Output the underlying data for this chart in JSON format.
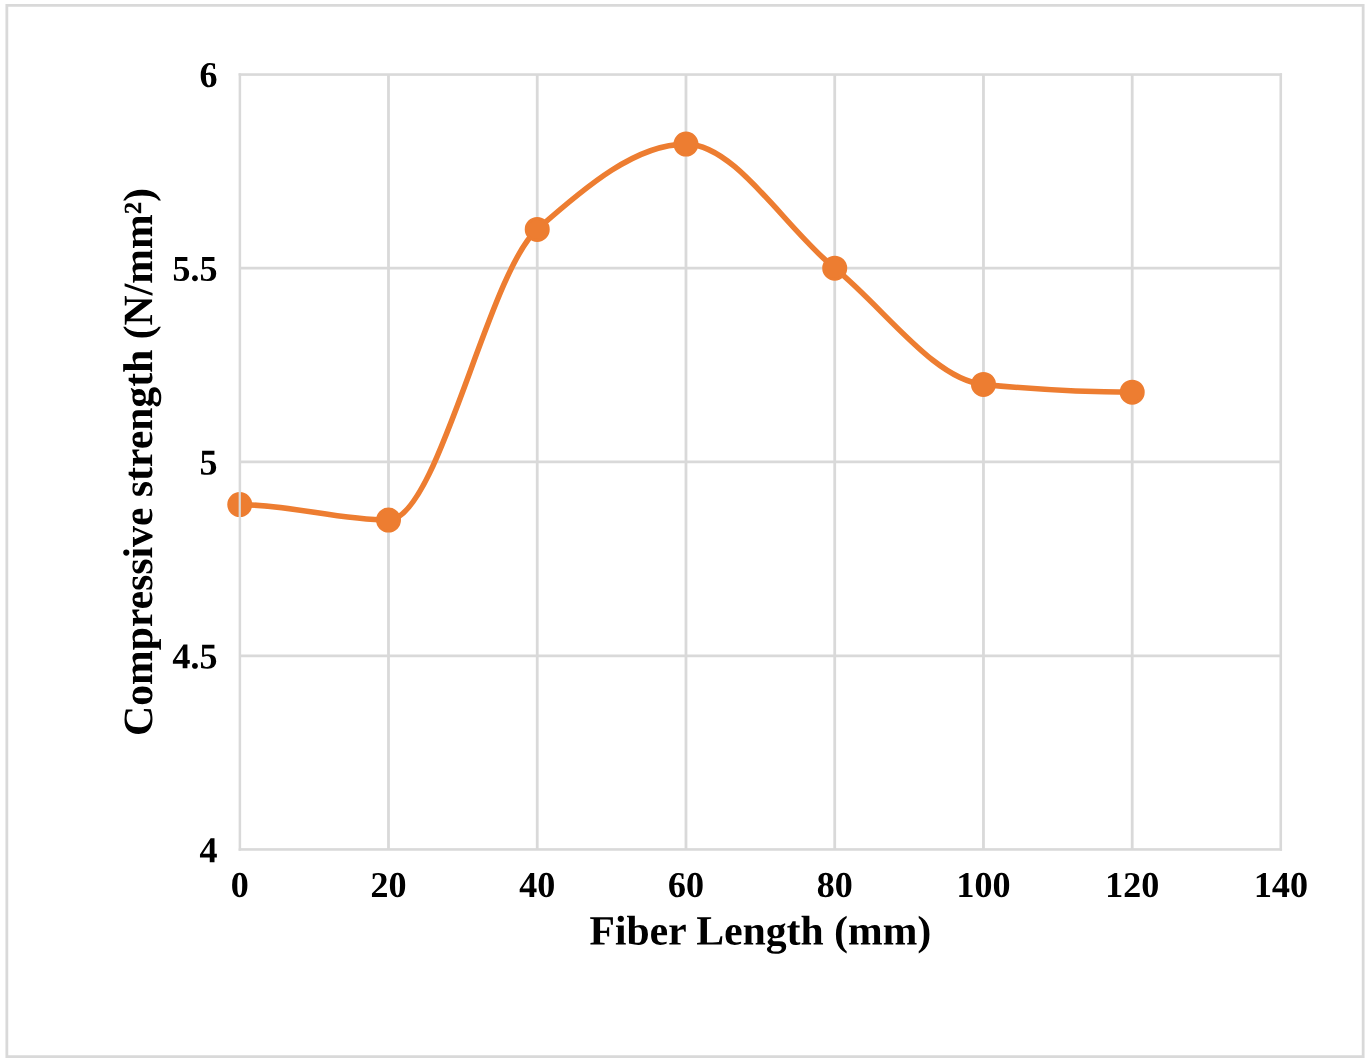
{
  "chart_data": {
    "type": "line",
    "xlabel": "Fiber Length (mm)",
    "ylabel": "Compressive strength (N/mm²)",
    "x": [
      0,
      20,
      40,
      60,
      80,
      100,
      120
    ],
    "series": [
      {
        "color": "#ed7d31",
        "values": [
          4.89,
          4.85,
          5.6,
          5.82,
          5.5,
          5.2,
          5.18
        ]
      }
    ],
    "xlim": [
      0,
      140
    ],
    "xticks": [
      0,
      20,
      40,
      60,
      80,
      100,
      120,
      140
    ],
    "ylim": [
      4,
      6
    ],
    "yticks": [
      4,
      4.5,
      5,
      5.5,
      6
    ],
    "grid": true,
    "marker": "circle",
    "line_style": "solid",
    "legend": false
  }
}
